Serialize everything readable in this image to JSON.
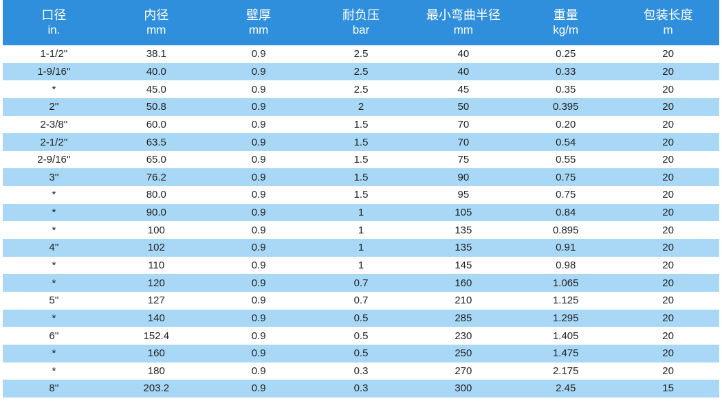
{
  "table": {
    "columns": [
      {
        "label": "口径",
        "unit": "in."
      },
      {
        "label": "内径",
        "unit": "mm"
      },
      {
        "label": "壁厚",
        "unit": "mm"
      },
      {
        "label": "耐负压",
        "unit": "bar"
      },
      {
        "label": "最小弯曲半径",
        "unit": "mm"
      },
      {
        "label": "重量",
        "unit": "kg/m"
      },
      {
        "label": "包装长度",
        "unit": "m"
      }
    ],
    "rows": [
      [
        "1-1/2''",
        "38.1",
        "0.9",
        "2.5",
        "40",
        "0.25",
        "20"
      ],
      [
        "1-9/16''",
        "40.0",
        "0.9",
        "2.5",
        "40",
        "0.33",
        "20"
      ],
      [
        "*",
        "45.0",
        "0.9",
        "2.5",
        "45",
        "0.35",
        "20"
      ],
      [
        "2''",
        "50.8",
        "0.9",
        "2",
        "50",
        "0.395",
        "20"
      ],
      [
        "2-3/8''",
        "60.0",
        "0.9",
        "1.5",
        "70",
        "0.20",
        "20"
      ],
      [
        "2-1/2''",
        "63.5",
        "0.9",
        "1.5",
        "70",
        "0.54",
        "20"
      ],
      [
        "2-9/16''",
        "65.0",
        "0.9",
        "1.5",
        "75",
        "0.55",
        "20"
      ],
      [
        "3''",
        "76.2",
        "0.9",
        "1.5",
        "90",
        "0.75",
        "20"
      ],
      [
        "*",
        "80.0",
        "0.9",
        "1.5",
        "95",
        "0.75",
        "20"
      ],
      [
        "*",
        "90.0",
        "0.9",
        "1",
        "105",
        "0.84",
        "20"
      ],
      [
        "*",
        "100",
        "0.9",
        "1",
        "135",
        "0.895",
        "20"
      ],
      [
        "4''",
        "102",
        "0.9",
        "1",
        "135",
        "0.91",
        "20"
      ],
      [
        "*",
        "110",
        "0.9",
        "1",
        "145",
        "0.98",
        "20"
      ],
      [
        "*",
        "120",
        "0.9",
        "0.7",
        "160",
        "1.065",
        "20"
      ],
      [
        "5''",
        "127",
        "0.9",
        "0.7",
        "210",
        "1.125",
        "20"
      ],
      [
        "*",
        "140",
        "0.9",
        "0.5",
        "285",
        "1.295",
        "20"
      ],
      [
        "6''",
        "152.4",
        "0.9",
        "0.5",
        "230",
        "1.405",
        "20"
      ],
      [
        "*",
        "160",
        "0.9",
        "0.5",
        "250",
        "1.475",
        "20"
      ],
      [
        "*",
        "180",
        "0.9",
        "0.3",
        "270",
        "2.175",
        "20"
      ],
      [
        "8''",
        "203.2",
        "0.9",
        "0.3",
        "300",
        "2.45",
        "15"
      ]
    ]
  },
  "colors": {
    "header_bg": "#2f8fdc",
    "header_text": "#ffffff",
    "row_alt_bg": "#a8d8f5",
    "row_bg": "#ffffff",
    "text": "#222222"
  }
}
